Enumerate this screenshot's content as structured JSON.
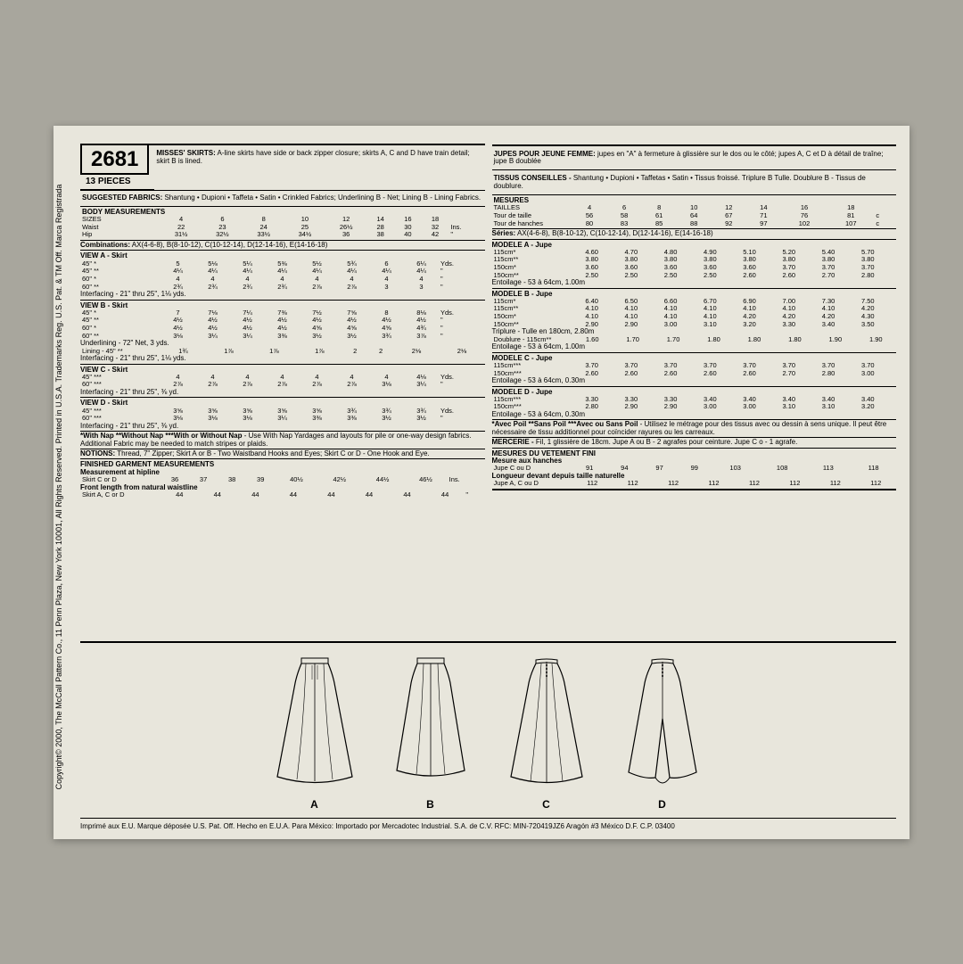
{
  "copyright_side": "Copyright© 2000, The McCall Pattern Co., 11 Penn Plaza, New York 10001, All Rights Reserved. Printed in U.S.A. Trademarks Reg. U.S. Pat. & TM Off. Marca Registrada",
  "pattern_number": "2681",
  "pieces": "13 PIECES",
  "en": {
    "title_bold": "MISSES' SKIRTS:",
    "title_desc": " A-line skirts have side or back zipper closure; skirts A, C and D have train detail; skirt B is lined.",
    "fabrics_label": "SUGGESTED FABRICS:",
    "fabrics": " Shantung • Dupioni • Taffeta • Satin • Crinkled Fabrics; Underlining B - Net; Lining B - Lining Fabrics.",
    "body_label": "BODY MEASUREMENTS",
    "sizes_label": "SIZES",
    "sizes": [
      "4",
      "6",
      "8",
      "10",
      "12",
      "14",
      "16",
      "18"
    ],
    "unit": "Ins.",
    "unit_ditto": "\"",
    "waist_label": "Waist",
    "waist": [
      "22",
      "23",
      "24",
      "25",
      "26½",
      "28",
      "30",
      "32"
    ],
    "hip_label": "Hip",
    "hip": [
      "31½",
      "32½",
      "33½",
      "34½",
      "36",
      "38",
      "40",
      "42"
    ],
    "combos_label": "Combinations:",
    "combos": " AX(4-6-8), B(8-10-12), C(10-12-14), D(12-14-16), E(14-16-18)",
    "viewA_label": "VIEW A - Skirt",
    "viewA": [
      {
        "w": "45\" *",
        "v": [
          "5",
          "5⅛",
          "5¼",
          "5⅜",
          "5½",
          "5¾",
          "6",
          "6¼"
        ],
        "u": "Yds."
      },
      {
        "w": "45\" **",
        "v": [
          "4¼",
          "4¼",
          "4¼",
          "4¼",
          "4¼",
          "4¼",
          "4¼",
          "4¼"
        ],
        "u": "\""
      },
      {
        "w": "60\" *",
        "v": [
          "4",
          "4",
          "4",
          "4",
          "4",
          "4",
          "4",
          "4"
        ],
        "u": "\""
      },
      {
        "w": "60\" **",
        "v": [
          "2¾",
          "2¾",
          "2¾",
          "2¾",
          "2⅞",
          "2⅞",
          "3",
          "3"
        ],
        "u": "\""
      }
    ],
    "viewA_interfacing": "Interfacing - 21\" thru 25\", 1⅛ yds.",
    "viewB_label": "VIEW B - Skirt",
    "viewB": [
      {
        "w": "45\" *",
        "v": [
          "7",
          "7⅛",
          "7¼",
          "7⅜",
          "7½",
          "7⅝",
          "8",
          "8⅛"
        ],
        "u": "Yds."
      },
      {
        "w": "45\" **",
        "v": [
          "4½",
          "4½",
          "4½",
          "4½",
          "4½",
          "4½",
          "4½",
          "4½"
        ],
        "u": "\""
      },
      {
        "w": "60\" *",
        "v": [
          "4½",
          "4½",
          "4½",
          "4½",
          "4⅝",
          "4⅝",
          "4⅝",
          "4¾"
        ],
        "u": "\""
      },
      {
        "w": "60\" **",
        "v": [
          "3⅛",
          "3¼",
          "3¼",
          "3⅜",
          "3½",
          "3½",
          "3¾",
          "3⅞"
        ],
        "u": "\""
      }
    ],
    "viewB_underlining": "Underlining - 72\" Net, 3 yds.",
    "viewB_lining_label": "Lining - 45\" **",
    "viewB_lining": [
      "1¾",
      "1⅞",
      "1⅞",
      "1⅞",
      "2",
      "2",
      "2⅛",
      "2⅛"
    ],
    "viewB_interfacing": "Interfacing - 21\" thru 25\", 1⅛ yds.",
    "viewC_label": "VIEW C - Skirt",
    "viewC": [
      {
        "w": "45\" ***",
        "v": [
          "4",
          "4",
          "4",
          "4",
          "4",
          "4",
          "4",
          "4⅛"
        ],
        "u": "Yds."
      },
      {
        "w": "60\" ***",
        "v": [
          "2⅞",
          "2⅞",
          "2⅞",
          "2⅞",
          "2⅞",
          "2⅞",
          "3⅛",
          "3¼"
        ],
        "u": "\""
      }
    ],
    "viewC_interfacing": "Interfacing - 21\" thru 25\", ⅜ yd.",
    "viewD_label": "VIEW D - Skirt",
    "viewD": [
      {
        "w": "45\" ***",
        "v": [
          "3⅝",
          "3⅝",
          "3⅝",
          "3⅝",
          "3⅝",
          "3¾",
          "3¾",
          "3¾"
        ],
        "u": "Yds."
      },
      {
        "w": "60\" ***",
        "v": [
          "3⅛",
          "3⅛",
          "3⅛",
          "3¼",
          "3⅜",
          "3⅜",
          "3½",
          "3½"
        ],
        "u": "\""
      }
    ],
    "viewD_interfacing": "Interfacing - 21\" thru 25\", ⅜ yd.",
    "nap_note_bold": "*With Nap **Without Nap ***With or Without Nap",
    "nap_note": " - Use With Nap Yardages and layouts for pile or one-way design fabrics. Additional Fabric may be needed to match stripes or plaids.",
    "notions_label": "NOTIONS:",
    "notions": " Thread, 7\" Zipper; Skirt A or B - Two Waistband Hooks and Eyes; Skirt C or D - One Hook and Eye.",
    "finished_label": "FINISHED GARMENT MEASUREMENTS",
    "hipline_label": "Measurement at hipline",
    "skirtCD_label": "Skirt C or D",
    "hipline": [
      "36",
      "37",
      "38",
      "39",
      "40½",
      "42½",
      "44½",
      "46½"
    ],
    "frontlen_label": "Front length from natural waistline",
    "skirtACD_label": "Skirt A, C or D",
    "frontlen": [
      "44",
      "44",
      "44",
      "44",
      "44",
      "44",
      "44",
      "44"
    ]
  },
  "fr": {
    "title_bold": "JUPES POUR JEUNE FEMME:",
    "title_desc": " jupes en \"A\" à fermeture à glissière sur le dos ou le côté; jupes A, C et D à détail de traîne; jupe B doublée",
    "fabrics_label": "TISSUS CONSEILLES -",
    "fabrics": " Shantung • Dupioni • Taffetas • Satin • Tissus froissé. Triplure B Tulle. Doublure B - Tissus de doublure.",
    "body_label": "MESURES",
    "sizes_label": "TAILLES",
    "sizes": [
      "4",
      "6",
      "8",
      "10",
      "12",
      "14",
      "16",
      "18"
    ],
    "unit": "c",
    "waist_label": "Tour de taille",
    "waist": [
      "56",
      "58",
      "61",
      "64",
      "67",
      "71",
      "76",
      "81"
    ],
    "hip_label": "Tour de hanches",
    "hip": [
      "80",
      "83",
      "85",
      "88",
      "92",
      "97",
      "102",
      "107"
    ],
    "combos_label": "Séries:",
    "combos": "      AX(4-6-8), B(8-10-12), C(10-12-14), D(12-14-16), E(14-16-18)",
    "viewA_label": "MODELE A - Jupe",
    "viewA": [
      {
        "w": "115cm*",
        "v": [
          "4.60",
          "4.70",
          "4.80",
          "4.90",
          "5.10",
          "5.20",
          "5.40",
          "5.70"
        ]
      },
      {
        "w": "115cm**",
        "v": [
          "3.80",
          "3.80",
          "3.80",
          "3.80",
          "3.80",
          "3.80",
          "3.80",
          "3.80"
        ]
      },
      {
        "w": "150cm*",
        "v": [
          "3.60",
          "3.60",
          "3.60",
          "3.60",
          "3.60",
          "3.70",
          "3.70",
          "3.70"
        ]
      },
      {
        "w": "150cm**",
        "v": [
          "2.50",
          "2.50",
          "2.50",
          "2.50",
          "2.60",
          "2.60",
          "2.70",
          "2.80"
        ]
      }
    ],
    "viewA_interfacing": "Entoilage - 53 à 64cm, 1.00m",
    "viewB_label": "MODELE B - Jupe",
    "viewB": [
      {
        "w": "115cm*",
        "v": [
          "6.40",
          "6.50",
          "6.60",
          "6.70",
          "6.90",
          "7.00",
          "7.30",
          "7.50"
        ]
      },
      {
        "w": "115cm**",
        "v": [
          "4.10",
          "4.10",
          "4.10",
          "4.10",
          "4.10",
          "4.10",
          "4.10",
          "4.20"
        ]
      },
      {
        "w": "150cm*",
        "v": [
          "4.10",
          "4.10",
          "4.10",
          "4.10",
          "4.20",
          "4.20",
          "4.20",
          "4.30"
        ]
      },
      {
        "w": "150cm**",
        "v": [
          "2.90",
          "2.90",
          "3.00",
          "3.10",
          "3.20",
          "3.30",
          "3.40",
          "3.50"
        ]
      }
    ],
    "viewB_triplure": "Triplure - Tulle en 180cm, 2.80m",
    "viewB_lining_label": "Doublure - 115cm**",
    "viewB_lining": [
      "1.60",
      "1.70",
      "1.70",
      "1.80",
      "1.80",
      "1.80",
      "1.90",
      "1.90"
    ],
    "viewB_interfacing": "Entoilage - 53 à 64cm, 1.00m",
    "viewC_label": "MODELE C - Jupe",
    "viewC": [
      {
        "w": "115cm***",
        "v": [
          "3.70",
          "3.70",
          "3.70",
          "3.70",
          "3.70",
          "3.70",
          "3.70",
          "3.70"
        ]
      },
      {
        "w": "150cm***",
        "v": [
          "2.60",
          "2.60",
          "2.60",
          "2.60",
          "2.60",
          "2.70",
          "2.80",
          "3.00"
        ]
      }
    ],
    "viewC_interfacing": "Entoilage - 53 à 64cm, 0.30m",
    "viewD_label": "MODELE D - Jupe",
    "viewD": [
      {
        "w": "115cm***",
        "v": [
          "3.30",
          "3.30",
          "3.30",
          "3.40",
          "3.40",
          "3.40",
          "3.40",
          "3.40"
        ]
      },
      {
        "w": "150cm***",
        "v": [
          "2.80",
          "2.90",
          "2.90",
          "3.00",
          "3.00",
          "3.10",
          "3.10",
          "3.20"
        ]
      }
    ],
    "viewD_interfacing": "Entoilage - 53 à 64cm, 0.30m",
    "nap_note_bold": "*Avec Poil **Sans Poil ***Avec ou Sans Poil",
    "nap_note": " - Utilisez le métrage pour des tissus avec ou dessin à sens unique. Il peut être nécessaire de tissu additionnel pour coïncider rayures ou les carreaux.",
    "notions_label": "MERCERIE -",
    "notions": " Fil, 1 glissière de 18cm. Jupe A ou B - 2 agrafes pour ceinture. Jupe C o - 1 agrafe.",
    "finished_label": "MESURES DU VETEMENT FINI",
    "hipline_label": "Mesure aux hanches",
    "skirtCD_label": "Jupe C ou D",
    "hipline": [
      "91",
      "94",
      "97",
      "99",
      "103",
      "108",
      "113",
      "118"
    ],
    "frontlen_label": "Longueur devant depuis taille naturelle",
    "skirtACD_label": "Jupe A, C ou D",
    "frontlen": [
      "112",
      "112",
      "112",
      "112",
      "112",
      "112",
      "112",
      "112"
    ]
  },
  "skirt_labels": [
    "A",
    "B",
    "C",
    "D"
  ],
  "footer": "Imprimé aux E.U. Marque déposée U.S. Pat. Off.  Hecho en E.U.A.  Para México: Importado por Mercadotec Industrial. S.A. de C.V.   RFC: MIN-720419JZ6  Aragón #3 México D.F.   C.P. 03400"
}
